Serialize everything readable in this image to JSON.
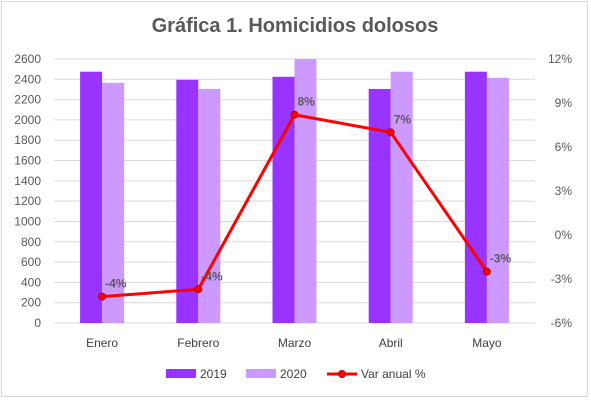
{
  "chart_data": {
    "type": "bar",
    "title": "Gráfica 1. Homicidios dolosos",
    "categories": [
      "Enero",
      "Febrero",
      "Marzo",
      "Abril",
      "Mayo"
    ],
    "series": [
      {
        "name": "2019",
        "kind": "bar",
        "axis": "left",
        "color": "#9933ff",
        "values": [
          2475,
          2395,
          2425,
          2305,
          2475
        ]
      },
      {
        "name": "2020",
        "kind": "bar",
        "axis": "left",
        "color": "#cc99ff",
        "values": [
          2365,
          2305,
          2600,
          2475,
          2415
        ]
      },
      {
        "name": "Var anual %",
        "kind": "line",
        "axis": "right",
        "color": "#ff0000",
        "values": [
          -4.2,
          -3.7,
          8.2,
          7.0,
          -2.5
        ],
        "labels": [
          "-4%",
          "-4%",
          "8%",
          "7%",
          "-3%"
        ]
      }
    ],
    "y_left": {
      "min": 0,
      "max": 2600,
      "ticks": [
        "0",
        "200",
        "400",
        "600",
        "800",
        "1000",
        "1200",
        "1400",
        "1600",
        "1800",
        "2000",
        "2200",
        "2400",
        "2600"
      ]
    },
    "y_right": {
      "min": -6,
      "max": 12,
      "ticks": [
        "-6%",
        "-3%",
        "0%",
        "3%",
        "6%",
        "9%",
        "12%"
      ]
    },
    "grid": true,
    "legend": {
      "position": "bottom",
      "entries": [
        "2019",
        "2020",
        "Var anual %"
      ]
    }
  }
}
